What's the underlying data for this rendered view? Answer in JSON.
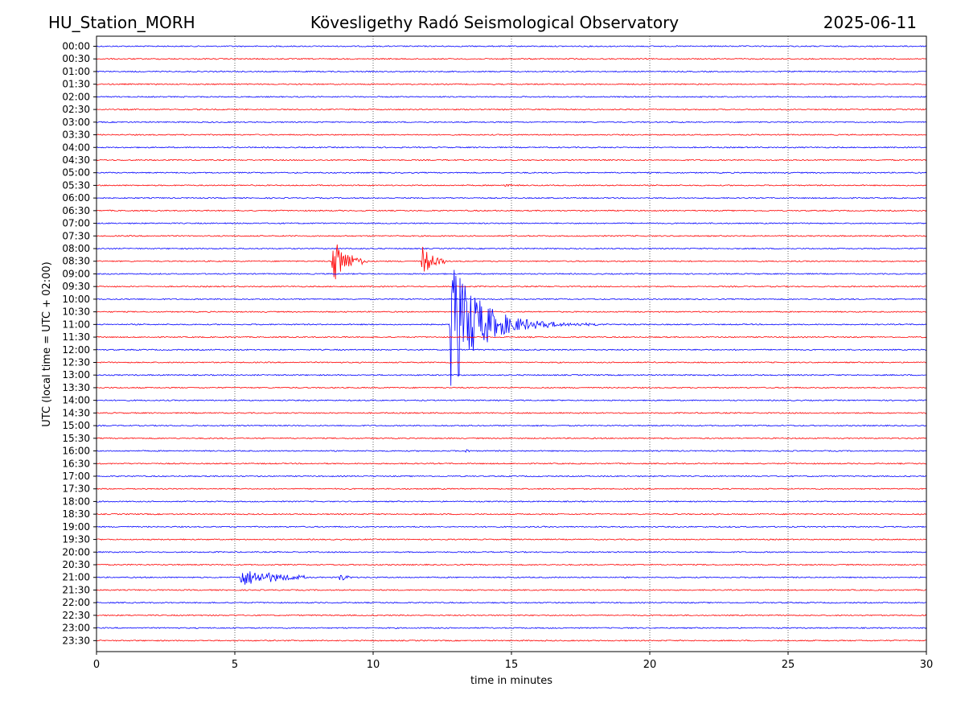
{
  "chart_data": {
    "type": "line",
    "title_left": "HU_Station_MORH",
    "title_center": "Kövesligethy Radó Seismological Observatory",
    "title_right": "2025-06-11",
    "xlabel": "time in minutes",
    "ylabel": "UTC (local time = UTC + 02:00)",
    "xlim": [
      0,
      30
    ],
    "x_ticks": [
      "0",
      "5",
      "10",
      "15",
      "20",
      "25",
      "30"
    ],
    "x_grid": [
      5,
      10,
      15,
      20,
      25
    ],
    "row_labels": [
      "00:00",
      "00:30",
      "01:00",
      "01:30",
      "02:00",
      "02:30",
      "03:00",
      "03:30",
      "04:00",
      "04:30",
      "05:00",
      "05:30",
      "06:00",
      "06:30",
      "07:00",
      "07:30",
      "08:00",
      "08:30",
      "09:00",
      "09:30",
      "10:00",
      "10:30",
      "11:00",
      "11:30",
      "12:00",
      "12:30",
      "13:00",
      "13:30",
      "14:00",
      "14:30",
      "15:00",
      "15:30",
      "16:00",
      "16:30",
      "17:00",
      "17:30",
      "18:00",
      "18:30",
      "19:00",
      "19:30",
      "20:00",
      "20:30",
      "21:00",
      "21:30",
      "22:00",
      "22:30",
      "23:00",
      "23:30"
    ],
    "trace_colors": [
      "#0000ff",
      "#ff0000"
    ],
    "noise_level": 0.7,
    "events": [
      {
        "row": 17,
        "t": 8.5,
        "amp": 28,
        "decay": 0.5,
        "duration": 1.3,
        "coda": 3
      },
      {
        "row": 17,
        "t": 11.75,
        "amp": 18,
        "decay": 0.4,
        "duration": 0.9,
        "coda": 2
      },
      {
        "row": 22,
        "t": 12.75,
        "amp": 90,
        "decay": 0.9,
        "duration": 6.5,
        "coda": 4
      },
      {
        "row": 42,
        "t": 5.2,
        "amp": 8,
        "decay": 1.5,
        "duration": 2.4,
        "coda": 3
      },
      {
        "row": 42,
        "t": 8.75,
        "amp": 5,
        "decay": 0.3,
        "duration": 0.5,
        "coda": 1
      },
      {
        "row": 11,
        "t": 14.7,
        "amp": 3,
        "decay": 0.2,
        "duration": 0.4,
        "coda": 0
      },
      {
        "row": 32,
        "t": 13.3,
        "amp": 2.5,
        "decay": 0.2,
        "duration": 0.3,
        "coda": 0
      }
    ]
  }
}
